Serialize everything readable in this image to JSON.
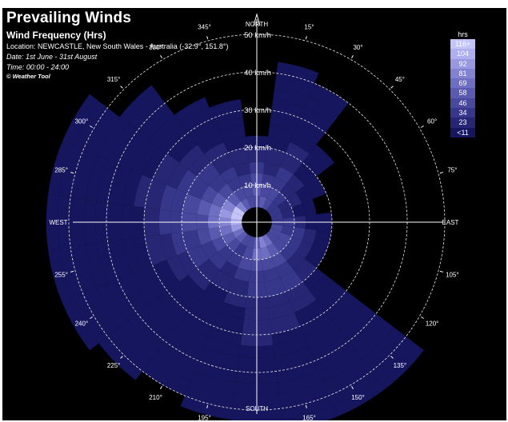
{
  "header": {
    "title": "Prevailing Winds",
    "subtitle": "Wind Frequency (Hrs)",
    "location": "Location: NEWCASTLE, New South Wales - Australia (-32.9°, 151.8°)",
    "date": "Date: 1st June - 31st August",
    "time": "Time: 00:00 - 24:00",
    "credit": "© Weather Tool"
  },
  "legend": {
    "title": "hrs",
    "items": [
      {
        "label": "116+",
        "color": "#c4c4f8",
        "text_color": "#ffffff"
      },
      {
        "label": "104",
        "color": "#aeaef0",
        "text_color": "#ffffff"
      },
      {
        "label": "92",
        "color": "#9898e2",
        "text_color": "#ffffff"
      },
      {
        "label": "81",
        "color": "#8282d2",
        "text_color": "#ffffff"
      },
      {
        "label": "69",
        "color": "#6e6ec2",
        "text_color": "#ffffff"
      },
      {
        "label": "58",
        "color": "#5a5ab0",
        "text_color": "#ffffff"
      },
      {
        "label": "46",
        "color": "#48489e",
        "text_color": "#ffffff"
      },
      {
        "label": "34",
        "color": "#36368a",
        "text_color": "#ffffff"
      },
      {
        "label": "23",
        "color": "#262674",
        "text_color": "#ffffff"
      },
      {
        "label": "<11",
        "color": "#16165e",
        "text_color": "#ffffff"
      }
    ]
  },
  "chart_data": {
    "type": "wind-rose",
    "title": "Prevailing Winds",
    "subtitle": "Wind Frequency (Hrs)",
    "direction_step_deg": 15,
    "speed_unit": "km/h",
    "speed_rings": [
      10,
      20,
      30,
      40,
      50
    ],
    "speed_ring_labels": [
      "10 km/h",
      "20 km/h",
      "30 km/h",
      "40 km/h",
      "50 km/h"
    ],
    "calm_radius_kmh": 4,
    "cardinal_labels": {
      "N": "NORTH",
      "E": "EAST",
      "S": "SOUTH",
      "W": "WEST"
    },
    "direction_labels": [
      "15°",
      "30°",
      "45°",
      "60°",
      "75°",
      "105°",
      "120°",
      "135°",
      "150°",
      "165°",
      "195°",
      "210°",
      "225°",
      "240°",
      "255°",
      "285°",
      "300°",
      "315°",
      "330°",
      "345°"
    ],
    "speed_bin_edges_kmh": [
      4,
      7,
      10,
      13,
      16,
      20,
      23,
      26,
      30,
      33,
      36,
      40,
      43,
      46,
      50,
      53,
      56
    ],
    "frequency_hrs_by_direction": [
      {
        "dir": 0,
        "hrs": [
          46,
          58,
          46,
          34,
          23,
          11
        ]
      },
      {
        "dir": 15,
        "hrs": [
          58,
          46,
          34,
          23,
          23,
          11,
          11,
          11,
          11,
          11,
          11,
          11
        ]
      },
      {
        "dir": 30,
        "hrs": [
          46,
          46,
          34,
          34,
          23,
          23,
          11,
          11,
          11,
          11,
          11
        ]
      },
      {
        "dir": 45,
        "hrs": [
          34,
          34,
          23,
          23,
          11,
          11,
          11
        ]
      },
      {
        "dir": 60,
        "hrs": [
          34,
          23,
          23,
          11,
          11
        ]
      },
      {
        "dir": 75,
        "hrs": [
          34,
          23,
          11,
          11
        ]
      },
      {
        "dir": 90,
        "hrs": [
          34,
          34,
          23,
          11,
          11
        ]
      },
      {
        "dir": 105,
        "hrs": [
          46,
          34,
          34,
          23,
          11
        ]
      },
      {
        "dir": 120,
        "hrs": [
          46,
          46,
          34,
          23,
          11
        ]
      },
      {
        "dir": 135,
        "hrs": [
          46,
          46,
          34,
          23,
          23,
          11,
          11,
          11,
          11,
          11,
          11,
          11,
          11,
          11,
          11,
          11
        ]
      },
      {
        "dir": 150,
        "hrs": [
          69,
          58,
          46,
          34,
          34,
          23,
          23,
          11,
          11,
          11,
          11,
          11,
          11,
          11,
          11,
          11
        ]
      },
      {
        "dir": 165,
        "hrs": [
          81,
          69,
          46,
          34,
          34,
          23,
          23,
          23,
          11,
          11,
          11,
          11,
          11,
          11,
          11,
          11
        ]
      },
      {
        "dir": 180,
        "hrs": [
          58,
          69,
          46,
          34,
          34,
          23,
          23,
          23,
          23,
          11,
          11,
          11,
          11,
          11,
          11,
          11
        ]
      },
      {
        "dir": 195,
        "hrs": [
          46,
          46,
          46,
          34,
          23,
          23,
          11,
          11,
          11,
          11,
          11,
          11,
          11,
          11,
          11
        ]
      },
      {
        "dir": 210,
        "hrs": [
          46,
          34,
          34,
          23,
          23,
          11,
          11,
          11,
          11,
          11,
          11,
          11,
          11,
          11
        ]
      },
      {
        "dir": 225,
        "hrs": [
          58,
          46,
          34,
          34,
          23,
          23,
          11,
          11,
          11,
          11,
          11,
          11,
          11,
          11,
          11
        ]
      },
      {
        "dir": 240,
        "hrs": [
          69,
          58,
          46,
          34,
          34,
          23,
          23,
          11,
          11,
          11,
          11,
          11,
          11,
          11,
          11,
          11,
          11
        ]
      },
      {
        "dir": 255,
        "hrs": [
          92,
          69,
          58,
          46,
          34,
          34,
          23,
          23,
          11,
          11,
          11,
          11,
          11,
          11,
          11,
          11,
          11
        ]
      },
      {
        "dir": 270,
        "hrs": [
          104,
          81,
          69,
          46,
          46,
          34,
          34,
          23,
          11,
          11,
          11,
          11,
          11,
          11,
          11,
          11,
          11
        ]
      },
      {
        "dir": 285,
        "hrs": [
          116,
          92,
          69,
          58,
          46,
          34,
          34,
          23,
          23,
          11,
          11,
          11,
          11,
          11,
          11,
          11,
          11
        ]
      },
      {
        "dir": 300,
        "hrs": [
          116,
          81,
          58,
          46,
          34,
          34,
          23,
          23,
          11,
          11,
          11,
          11,
          11,
          11,
          11,
          11
        ]
      },
      {
        "dir": 315,
        "hrs": [
          81,
          58,
          46,
          34,
          34,
          23,
          23,
          11,
          11,
          11,
          11,
          11,
          11
        ]
      },
      {
        "dir": 330,
        "hrs": [
          58,
          46,
          34,
          34,
          23,
          23,
          11,
          11,
          11,
          11
        ]
      },
      {
        "dir": 345,
        "hrs": [
          46,
          46,
          34,
          23,
          23,
          11,
          11,
          11,
          11
        ]
      }
    ],
    "grid": true
  }
}
